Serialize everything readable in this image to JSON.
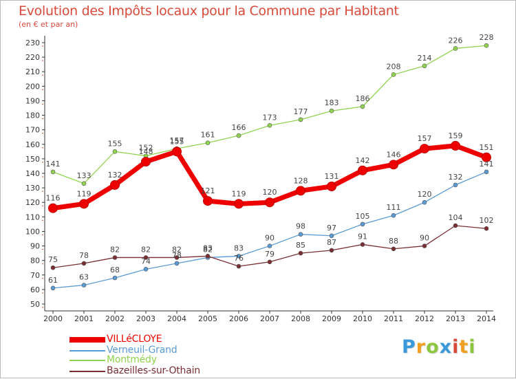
{
  "header": {
    "title": "Evolution des Impôts locaux pour la Commune par Habitant",
    "subtitle": "(en € et par an)"
  },
  "brand": {
    "letters": [
      "P",
      "r",
      "o",
      "x",
      "i",
      "t",
      "i"
    ],
    "colors": [
      "#3a9ad9",
      "#f0a020",
      "#8cc63f",
      "#3a9ad9",
      "#d94a3a",
      "#f0a020",
      "#8cc63f"
    ]
  },
  "colors": {
    "title": "#d94a3a",
    "axis": "#333333",
    "tick_label": "#333333",
    "value_label": "#444444"
  },
  "chart_data": {
    "type": "line",
    "title": "Evolution des Impôts locaux pour la Commune par Habitant",
    "subtitle": "(en € et par an)",
    "xlabel": "",
    "ylabel": "",
    "ylim": [
      50,
      230
    ],
    "ytick_step": 10,
    "grid": false,
    "legend_position": "bottom-left",
    "x": [
      2000,
      2001,
      2002,
      2003,
      2004,
      2005,
      2006,
      2007,
      2008,
      2009,
      2010,
      2011,
      2012,
      2013,
      2014
    ],
    "series": [
      {
        "name": "VILLéCLOYE",
        "color": "#ee0000",
        "values": [
          116,
          119,
          132,
          148,
          155,
          121,
          119,
          120,
          128,
          131,
          142,
          146,
          157,
          159,
          151
        ],
        "labels": [
          "116",
          "119",
          "132",
          "148",
          "155",
          "121",
          "119",
          "120",
          "128",
          "131",
          "142",
          "146",
          "157",
          "159",
          "151"
        ]
      },
      {
        "name": "Verneuil-Grand",
        "color": "#5b9bd5",
        "values": [
          61,
          63,
          68,
          74,
          78,
          82,
          83,
          90,
          98,
          97,
          105,
          111,
          120,
          132,
          141
        ],
        "labels": [
          "61",
          "63",
          "68",
          "74",
          "78",
          "82",
          "83",
          "90",
          "98",
          "97",
          "105",
          "111",
          "120",
          "132",
          "141"
        ]
      },
      {
        "name": "Montmédy",
        "color": "#8fd34f",
        "values": [
          141,
          133,
          155,
          152,
          157,
          161,
          166,
          173,
          177,
          183,
          186,
          208,
          214,
          226,
          228
        ],
        "labels": [
          "141",
          "133",
          "155",
          "152",
          "157",
          "161",
          "166",
          "173",
          "177",
          "183",
          "186",
          "208",
          "214",
          "226",
          "228"
        ]
      },
      {
        "name": "Bazeilles-sur-Othain",
        "color": "#7a2e32",
        "values": [
          75,
          78,
          82,
          82,
          82,
          83,
          76,
          79,
          85,
          87,
          91,
          88,
          90,
          104,
          102
        ],
        "labels": [
          "75",
          "78",
          "82",
          "82",
          "82",
          "83",
          "76",
          "79",
          "85",
          "87",
          "91",
          "88",
          "90",
          "104",
          "102"
        ]
      }
    ],
    "legend": [
      "VILLéCLOYE",
      "Verneuil-Grand",
      "Montmédy",
      "Bazeilles-sur-Othain"
    ]
  }
}
